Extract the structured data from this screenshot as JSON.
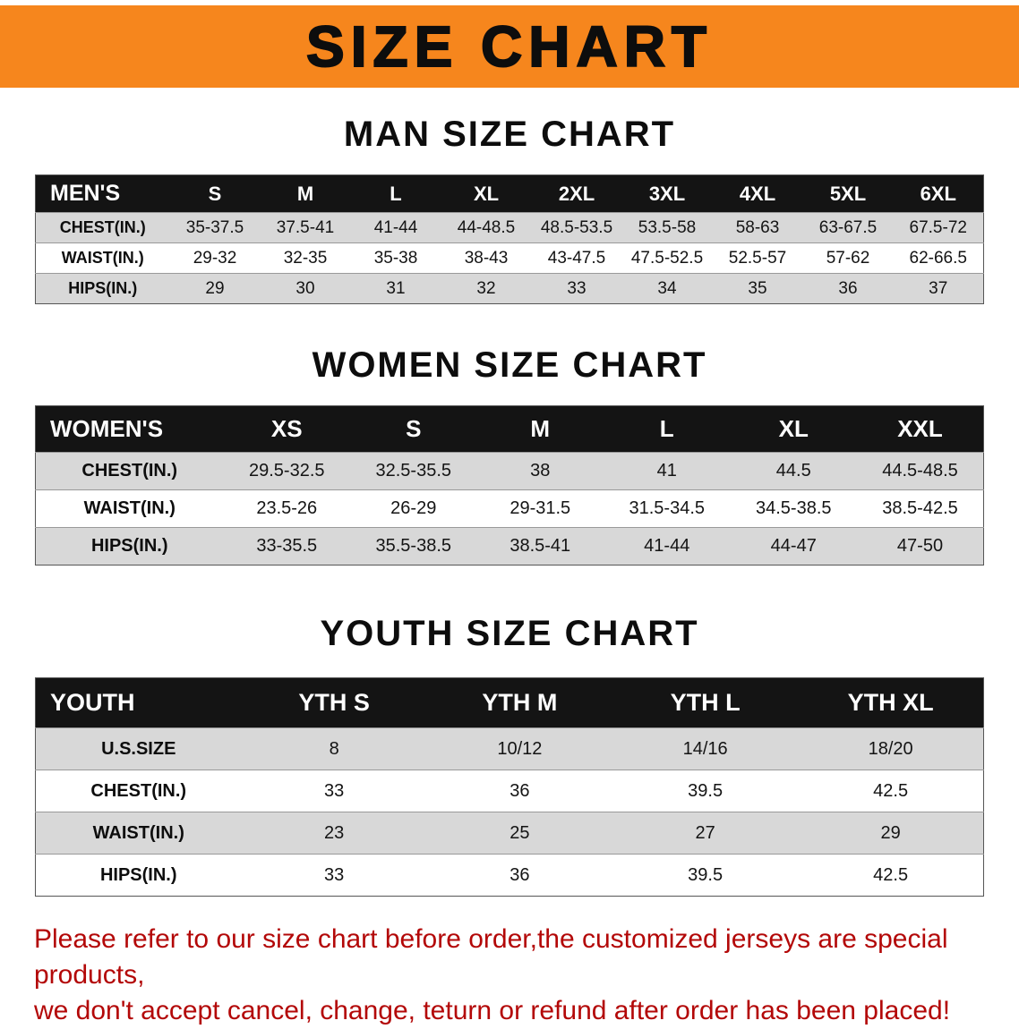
{
  "banner": {
    "title": "SIZE CHART"
  },
  "colors": {
    "banner_bg": "#F6861D",
    "title_text": "#0D0D0D",
    "header_bg": "#141414",
    "header_text": "#FFFFFF",
    "stripe": "#D8D8D8",
    "notice_text": "#B30808"
  },
  "sections": [
    {
      "heading": "MAN SIZE CHART",
      "table": {
        "header": [
          "MEN'S",
          "S",
          "M",
          "L",
          "XL",
          "2XL",
          "3XL",
          "4XL",
          "5XL",
          "6XL"
        ],
        "rows": [
          {
            "label": "CHEST(IN.)",
            "values": [
              "35-37.5",
              "37.5-41",
              "41-44",
              "44-48.5",
              "48.5-53.5",
              "53.5-58",
              "58-63",
              "63-67.5",
              "67.5-72"
            ]
          },
          {
            "label": "WAIST(IN.)",
            "values": [
              "29-32",
              "32-35",
              "35-38",
              "38-43",
              "43-47.5",
              "47.5-52.5",
              "52.5-57",
              "57-62",
              "62-66.5"
            ]
          },
          {
            "label": "HIPS(IN.)",
            "values": [
              "29",
              "30",
              "31",
              "32",
              "33",
              "34",
              "35",
              "36",
              "37"
            ]
          }
        ]
      }
    },
    {
      "heading": "WOMEN SIZE CHART",
      "table": {
        "header": [
          "WOMEN'S",
          "XS",
          "S",
          "M",
          "L",
          "XL",
          "XXL"
        ],
        "rows": [
          {
            "label": "CHEST(IN.)",
            "values": [
              "29.5-32.5",
              "32.5-35.5",
              "38",
              "41",
              "44.5",
              "44.5-48.5"
            ]
          },
          {
            "label": "WAIST(IN.)",
            "values": [
              "23.5-26",
              "26-29",
              "29-31.5",
              "31.5-34.5",
              "34.5-38.5",
              "38.5-42.5"
            ]
          },
          {
            "label": "HIPS(IN.)",
            "values": [
              "33-35.5",
              "35.5-38.5",
              "38.5-41",
              "41-44",
              "44-47",
              "47-50"
            ]
          }
        ]
      }
    },
    {
      "heading": "YOUTH SIZE CHART",
      "table": {
        "header": [
          "YOUTH",
          "YTH S",
          "YTH M",
          "YTH L",
          "YTH XL"
        ],
        "rows": [
          {
            "label": "U.S.SIZE",
            "values": [
              "8",
              "10/12",
              "14/16",
              "18/20"
            ]
          },
          {
            "label": "CHEST(IN.)",
            "values": [
              "33",
              "36",
              "39.5",
              "42.5"
            ]
          },
          {
            "label": "WAIST(IN.)",
            "values": [
              "23",
              "25",
              "27",
              "29"
            ]
          },
          {
            "label": "HIPS(IN.)",
            "values": [
              "33",
              "36",
              "39.5",
              "42.5"
            ]
          }
        ]
      }
    }
  ],
  "footer": {
    "line1": "Please refer to our size chart before order,the customized jerseys are special products,",
    "line2": "we don't accept cancel, change, teturn or refund after order has been placed!"
  }
}
